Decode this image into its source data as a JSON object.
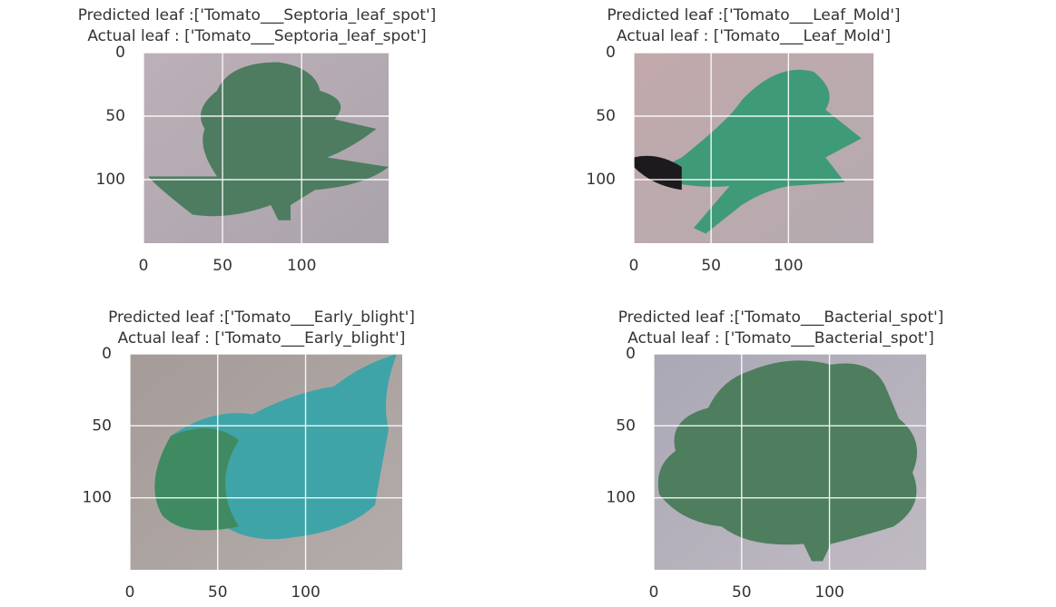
{
  "xlim": [
    0,
    155
  ],
  "ylim": [
    0,
    150
  ],
  "panels": [
    {
      "predicted": "Predicted leaf :['Tomato___Septoria_leaf_spot']",
      "actual": "Actual leaf : ['Tomato___Septoria_leaf_spot']",
      "xticks": [
        0,
        50,
        100
      ],
      "yticks": [
        0,
        50,
        100
      ]
    },
    {
      "predicted": "Predicted leaf :['Tomato___Leaf_Mold']",
      "actual": "Actual leaf : ['Tomato___Leaf_Mold']",
      "xticks": [
        0,
        50,
        100
      ],
      "yticks": [
        0,
        50,
        100
      ]
    },
    {
      "predicted": "Predicted leaf :['Tomato___Early_blight']",
      "actual": "Actual leaf : ['Tomato___Early_blight']",
      "xticks": [
        0,
        50,
        100
      ],
      "yticks": [
        0,
        50,
        100
      ]
    },
    {
      "predicted": "Predicted leaf :['Tomato___Bacterial_spot']",
      "actual": "Actual leaf : ['Tomato___Bacterial_spot']",
      "xticks": [
        0,
        50,
        100
      ],
      "yticks": [
        0,
        50,
        100
      ]
    }
  ]
}
